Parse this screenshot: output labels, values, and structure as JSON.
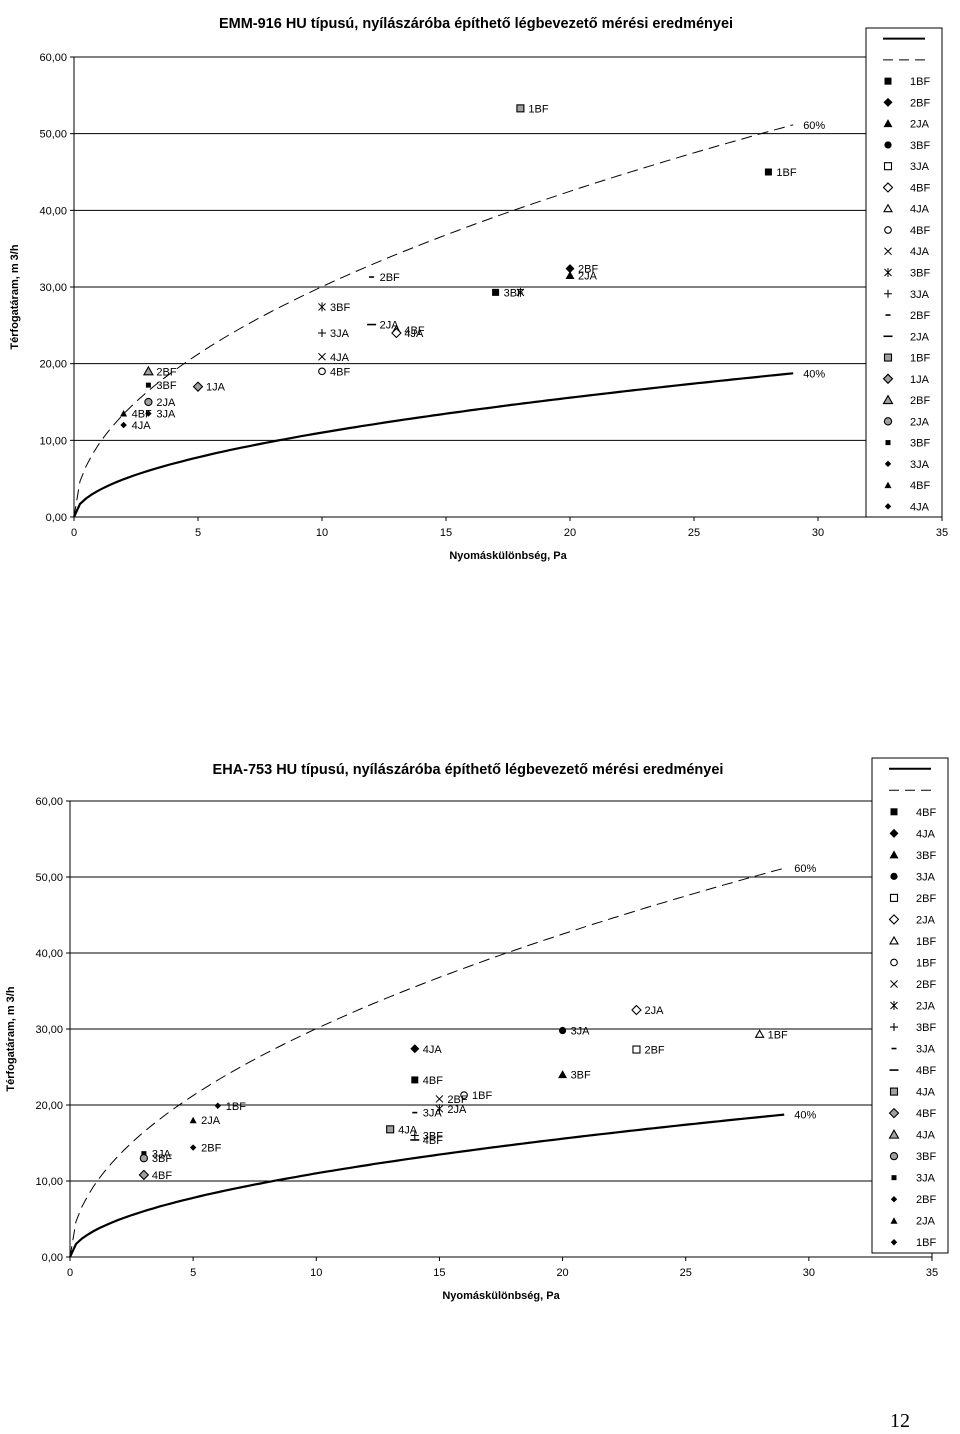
{
  "page": {
    "number": "12"
  },
  "colors": {
    "ink": "#000000",
    "gray_fill": "#a0a0a0",
    "background": "#ffffff"
  },
  "chart_data": [
    {
      "type": "scatter",
      "title": "EMM-916 HU típusú, nyílászáróba építhető légbevezető mérési eredményei",
      "xlabel": "Nyomáskülönbség, Pa",
      "ylabel": "Térfogatáram, m 3/h",
      "xlim": [
        0,
        35
      ],
      "ylim": [
        0,
        60
      ],
      "xticks": [
        "0",
        "5",
        "10",
        "15",
        "20",
        "25",
        "30",
        "35"
      ],
      "yticks": [
        "0,00",
        "10,00",
        "20,00",
        "30,00",
        "40,00",
        "50,00",
        "60,00"
      ],
      "grid": "horizontal",
      "legend_position": "right",
      "curves": [
        {
          "label": "40%",
          "style": "solid",
          "k": 3.48,
          "n": 0.5,
          "x_end": 29
        },
        {
          "label": "60%",
          "style": "dashed",
          "k": 9.5,
          "n": 0.5,
          "x_end": 29
        }
      ],
      "legend": [
        {
          "marker": "line-solid",
          "label": ""
        },
        {
          "marker": "line-dashed",
          "label": ""
        },
        {
          "marker": "square-filled",
          "label": "1BF"
        },
        {
          "marker": "diamond-filled",
          "label": "2BF"
        },
        {
          "marker": "triangle-filled",
          "label": "2JA"
        },
        {
          "marker": "circle-filled",
          "label": "3BF"
        },
        {
          "marker": "square-open",
          "label": "3JA"
        },
        {
          "marker": "diamond-open",
          "label": "4BF"
        },
        {
          "marker": "triangle-open",
          "label": "4JA"
        },
        {
          "marker": "circle-open",
          "label": "4BF"
        },
        {
          "marker": "x",
          "label": "4JA"
        },
        {
          "marker": "star",
          "label": "3BF"
        },
        {
          "marker": "plus",
          "label": "3JA"
        },
        {
          "marker": "dash-short",
          "label": "2BF"
        },
        {
          "marker": "dash-long",
          "label": "2JA"
        },
        {
          "marker": "square-gray",
          "label": "1BF"
        },
        {
          "marker": "diamond-gray",
          "label": "1JA"
        },
        {
          "marker": "triangle-gray",
          "label": "2BF"
        },
        {
          "marker": "circle-gray",
          "label": "2JA"
        },
        {
          "marker": "square-small",
          "label": "3BF"
        },
        {
          "marker": "diamond-small",
          "label": "3JA"
        },
        {
          "marker": "triangle-small",
          "label": "4BF"
        },
        {
          "marker": "diamond-small",
          "label": "4JA"
        }
      ],
      "points": [
        {
          "x": 18,
          "y": 53.3,
          "marker": "square-gray",
          "label": "1BF"
        },
        {
          "x": 28,
          "y": 45.0,
          "marker": "square-filled",
          "label": "1BF"
        },
        {
          "x": 20,
          "y": 32.4,
          "marker": "diamond-filled",
          "label": "2BF"
        },
        {
          "x": 20,
          "y": 31.5,
          "marker": "triangle-filled",
          "label": "2JA"
        },
        {
          "x": 17,
          "y": 29.3,
          "marker": "square-filled",
          "label": "3BF"
        },
        {
          "x": 18,
          "y": 29.3,
          "marker": "star",
          "label": ""
        },
        {
          "x": 12,
          "y": 31.3,
          "marker": "dash-short",
          "label": "2BF"
        },
        {
          "x": 10,
          "y": 27.4,
          "marker": "star",
          "label": "3BF"
        },
        {
          "x": 12,
          "y": 25.1,
          "marker": "dash-long",
          "label": "2JA"
        },
        {
          "x": 13,
          "y": 24.4,
          "marker": "triangle-open",
          "label": "4BF"
        },
        {
          "x": 13,
          "y": 24.0,
          "marker": "diamond-open",
          "label": "4JA"
        },
        {
          "x": 10,
          "y": 24.0,
          "marker": "plus",
          "label": "3JA"
        },
        {
          "x": 10,
          "y": 20.9,
          "marker": "x",
          "label": "4JA"
        },
        {
          "x": 10,
          "y": 19.0,
          "marker": "circle-open",
          "label": "4BF"
        },
        {
          "x": 3,
          "y": 19.0,
          "marker": "triangle-gray",
          "label": "2BF"
        },
        {
          "x": 3,
          "y": 17.2,
          "marker": "square-small",
          "label": "3BF"
        },
        {
          "x": 5,
          "y": 17.0,
          "marker": "diamond-gray",
          "label": "1JA"
        },
        {
          "x": 3,
          "y": 15.0,
          "marker": "circle-gray",
          "label": "2JA"
        },
        {
          "x": 2,
          "y": 13.5,
          "marker": "triangle-small",
          "label": "4BF"
        },
        {
          "x": 3,
          "y": 13.5,
          "marker": "diamond-small",
          "label": "3JA"
        },
        {
          "x": 2,
          "y": 12.0,
          "marker": "diamond-small",
          "label": "4JA"
        }
      ]
    },
    {
      "type": "scatter",
      "title": "EHA-753 HU típusú, nyílászáróba építhető légbevezető mérési eredményei",
      "xlabel": "Nyomáskülönbség, Pa",
      "ylabel": "Térfogatáram, m 3/h",
      "xlim": [
        0,
        35
      ],
      "ylim": [
        0,
        60
      ],
      "xticks": [
        "0",
        "5",
        "10",
        "15",
        "20",
        "25",
        "30",
        "35"
      ],
      "yticks": [
        "0,00",
        "10,00",
        "20,00",
        "30,00",
        "40,00",
        "50,00",
        "60,00"
      ],
      "grid": "horizontal",
      "legend_position": "right",
      "curves": [
        {
          "label": "40%",
          "style": "solid",
          "k": 3.48,
          "n": 0.5,
          "x_end": 29
        },
        {
          "label": "60%",
          "style": "dashed",
          "k": 9.5,
          "n": 0.5,
          "x_end": 29
        }
      ],
      "legend": [
        {
          "marker": "line-solid",
          "label": ""
        },
        {
          "marker": "line-dashed",
          "label": ""
        },
        {
          "marker": "square-filled",
          "label": "4BF"
        },
        {
          "marker": "diamond-filled",
          "label": "4JA"
        },
        {
          "marker": "triangle-filled",
          "label": "3BF"
        },
        {
          "marker": "circle-filled",
          "label": "3JA"
        },
        {
          "marker": "square-open",
          "label": "2BF"
        },
        {
          "marker": "diamond-open",
          "label": "2JA"
        },
        {
          "marker": "triangle-open",
          "label": "1BF"
        },
        {
          "marker": "circle-open",
          "label": "1BF"
        },
        {
          "marker": "x",
          "label": "2BF"
        },
        {
          "marker": "star",
          "label": "2JA"
        },
        {
          "marker": "plus",
          "label": "3BF"
        },
        {
          "marker": "dash-short",
          "label": "3JA"
        },
        {
          "marker": "dash-long",
          "label": "4BF"
        },
        {
          "marker": "square-gray",
          "label": "4JA"
        },
        {
          "marker": "diamond-gray",
          "label": "4BF"
        },
        {
          "marker": "triangle-gray",
          "label": "4JA"
        },
        {
          "marker": "circle-gray",
          "label": "3BF"
        },
        {
          "marker": "square-small",
          "label": "3JA"
        },
        {
          "marker": "diamond-small",
          "label": "2BF"
        },
        {
          "marker": "triangle-small",
          "label": "2JA"
        },
        {
          "marker": "diamond-small",
          "label": "1BF"
        }
      ],
      "points": [
        {
          "x": 23,
          "y": 32.5,
          "marker": "diamond-open",
          "label": "2JA"
        },
        {
          "x": 20,
          "y": 29.8,
          "marker": "circle-filled",
          "label": "3JA"
        },
        {
          "x": 28,
          "y": 29.3,
          "marker": "triangle-open",
          "label": "1BF"
        },
        {
          "x": 23,
          "y": 27.3,
          "marker": "square-open",
          "label": "2BF"
        },
        {
          "x": 14,
          "y": 27.4,
          "marker": "diamond-filled",
          "label": "4JA"
        },
        {
          "x": 20,
          "y": 24.0,
          "marker": "triangle-filled",
          "label": "3BF"
        },
        {
          "x": 14,
          "y": 23.3,
          "marker": "square-filled",
          "label": "4BF"
        },
        {
          "x": 16,
          "y": 21.3,
          "marker": "circle-open",
          "label": "1BF"
        },
        {
          "x": 15,
          "y": 20.8,
          "marker": "x",
          "label": "2BF"
        },
        {
          "x": 15,
          "y": 19.5,
          "marker": "star",
          "label": "2JA"
        },
        {
          "x": 14,
          "y": 19.0,
          "marker": "dash-short",
          "label": "3JA"
        },
        {
          "x": 6,
          "y": 19.9,
          "marker": "diamond-small",
          "label": "1BF"
        },
        {
          "x": 5,
          "y": 18.0,
          "marker": "triangle-small",
          "label": "2JA"
        },
        {
          "x": 13,
          "y": 16.8,
          "marker": "square-gray",
          "label": "4JA"
        },
        {
          "x": 14,
          "y": 16.0,
          "marker": "plus",
          "label": "3BF"
        },
        {
          "x": 14,
          "y": 15.4,
          "marker": "dash-long",
          "label": "4BF"
        },
        {
          "x": 5,
          "y": 14.4,
          "marker": "diamond-small",
          "label": "2BF"
        },
        {
          "x": 3,
          "y": 13.6,
          "marker": "square-small",
          "label": "3JA"
        },
        {
          "x": 3,
          "y": 13.0,
          "marker": "circle-gray",
          "label": "3BF"
        },
        {
          "x": 3,
          "y": 10.8,
          "marker": "diamond-gray",
          "label": "4BF"
        }
      ]
    }
  ]
}
